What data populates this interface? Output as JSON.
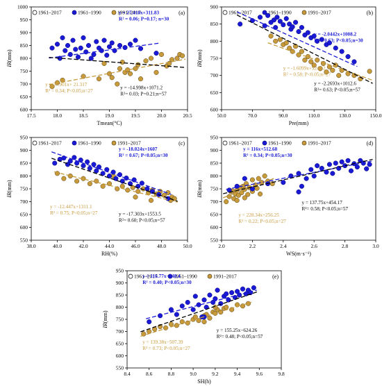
{
  "colors": {
    "all": "#000000",
    "early": "#1a1ad6",
    "late": "#c79a3c",
    "early_edge": "#0a0a7a",
    "late_edge": "#5a4418"
  },
  "legend": [
    "1961–2017",
    "1961–1990",
    "1991–2017"
  ],
  "chart_data": [
    {
      "id": "a",
      "label": "(a)",
      "type": "scatter",
      "xlabel": "Tmean(°C)",
      "ylabel": "IR(mm)",
      "xlim": [
        17.5,
        20.5
      ],
      "ylim": [
        600,
        1000
      ],
      "xticks": [
        "17.5",
        "18.0",
        "18.5",
        "19.0",
        "19.5",
        "20.0",
        "20.5"
      ],
      "yticks": [
        "600",
        "650",
        "700",
        "750",
        "800",
        "850",
        "900",
        "950",
        "1000"
      ],
      "eq_early": [
        "y = 27.418x+311.83",
        "R² = 0.06; P=0.17; n=30"
      ],
      "eq_late": [
        "y = 37.901x+ 21.317",
        "R² = 0.34; P<0.05;n=27"
      ],
      "eq_all": [
        "y = -14.998x+1071.2",
        "R²= 0.03; P=0.21;n=57"
      ],
      "lines": {
        "early": [
          27.418,
          311.83
        ],
        "late": [
          37.901,
          21.317
        ],
        "all": [
          -14.998,
          1071.2
        ]
      },
      "early": [
        [
          17.9,
          840
        ],
        [
          18.0,
          855
        ],
        [
          18.05,
          800
        ],
        [
          18.1,
          880
        ],
        [
          18.15,
          830
        ],
        [
          18.2,
          850
        ],
        [
          18.25,
          815
        ],
        [
          18.3,
          870
        ],
        [
          18.35,
          835
        ],
        [
          18.4,
          805
        ],
        [
          18.45,
          840
        ],
        [
          18.5,
          880
        ],
        [
          18.55,
          825
        ],
        [
          18.6,
          850
        ],
        [
          18.65,
          800
        ],
        [
          18.7,
          815
        ],
        [
          18.75,
          865
        ],
        [
          18.8,
          840
        ],
        [
          18.85,
          830
        ],
        [
          18.9,
          870
        ],
        [
          18.95,
          812
        ],
        [
          19.0,
          845
        ],
        [
          19.05,
          860
        ],
        [
          19.1,
          830
        ],
        [
          19.2,
          850
        ],
        [
          19.3,
          842
        ],
        [
          19.4,
          855
        ],
        [
          19.5,
          870
        ],
        [
          19.6,
          838
        ],
        [
          19.9,
          820
        ]
      ],
      "late": [
        [
          17.9,
          690
        ],
        [
          18.0,
          705
        ],
        [
          18.1,
          715
        ],
        [
          18.5,
          730
        ],
        [
          18.8,
          720
        ],
        [
          18.9,
          780
        ],
        [
          19.0,
          740
        ],
        [
          19.05,
          725
        ],
        [
          19.15,
          700
        ],
        [
          19.2,
          760
        ],
        [
          19.25,
          785
        ],
        [
          19.3,
          745
        ],
        [
          19.35,
          755
        ],
        [
          19.4,
          740
        ],
        [
          19.5,
          760
        ],
        [
          19.55,
          775
        ],
        [
          19.6,
          720
        ],
        [
          19.7,
          790
        ],
        [
          19.8,
          800
        ],
        [
          19.9,
          745
        ],
        [
          20.0,
          815
        ],
        [
          20.1,
          770
        ],
        [
          20.15,
          780
        ],
        [
          20.2,
          795
        ],
        [
          20.3,
          800
        ],
        [
          20.35,
          815
        ],
        [
          20.4,
          810
        ]
      ]
    },
    {
      "id": "b",
      "label": "(b)",
      "type": "scatter",
      "xlabel": "Pre(mm)",
      "ylabel": "IR(mm)",
      "xlim": [
        50,
        150
      ],
      "ylim": [
        600,
        900
      ],
      "xticks": [
        "50.0",
        "70.0",
        "90.0",
        "110.0",
        "130.0",
        "150.0"
      ],
      "yticks": [
        "600",
        "650",
        "700",
        "750",
        "800",
        "850",
        "900"
      ],
      "eq_early": [
        "y = -2.0442x+1008.2",
        "R² = 0.63; P<0.05;n=30"
      ],
      "eq_late": [
        "y = -1.6099x+924.12",
        "R² = 0.58; P<0.05;n=27"
      ],
      "eq_all": [
        "y = -2.2693x+1012.6",
        "R²= 0.63; P<0.05;n=57"
      ],
      "lines": {
        "early": [
          -2.0442,
          1008.2
        ],
        "late": [
          -1.6099,
          924.12
        ],
        "all": [
          -2.2693,
          1012.6
        ]
      },
      "early": [
        [
          62,
          850
        ],
        [
          70,
          860
        ],
        [
          75,
          870
        ],
        [
          78,
          845
        ],
        [
          80,
          875
        ],
        [
          82,
          855
        ],
        [
          84,
          862
        ],
        [
          85,
          840
        ],
        [
          86,
          870
        ],
        [
          88,
          858
        ],
        [
          90,
          848
        ],
        [
          92,
          866
        ],
        [
          94,
          850
        ],
        [
          95,
          835
        ],
        [
          96,
          842
        ],
        [
          98,
          855
        ],
        [
          100,
          828
        ],
        [
          102,
          840
        ],
        [
          104,
          818
        ],
        [
          106,
          825
        ],
        [
          108,
          810
        ],
        [
          110,
          815
        ],
        [
          112,
          800
        ],
        [
          115,
          805
        ],
        [
          118,
          790
        ],
        [
          120,
          795
        ],
        [
          124,
          780
        ],
        [
          128,
          770
        ],
        [
          132,
          755
        ],
        [
          136,
          740
        ]
      ],
      "late": [
        [
          82,
          815
        ],
        [
          85,
          800
        ],
        [
          88,
          805
        ],
        [
          90,
          790
        ],
        [
          92,
          795
        ],
        [
          94,
          780
        ],
        [
          96,
          770
        ],
        [
          98,
          785
        ],
        [
          100,
          760
        ],
        [
          102,
          770
        ],
        [
          104,
          745
        ],
        [
          106,
          755
        ],
        [
          108,
          740
        ],
        [
          110,
          730
        ],
        [
          112,
          745
        ],
        [
          114,
          720
        ],
        [
          116,
          735
        ],
        [
          118,
          710
        ],
        [
          120,
          725
        ],
        [
          122,
          715
        ],
        [
          124,
          730
        ],
        [
          126,
          700
        ],
        [
          128,
          715
        ],
        [
          132,
          705
        ],
        [
          136,
          700
        ],
        [
          140,
          690
        ],
        [
          146,
          712
        ]
      ]
    },
    {
      "id": "c",
      "label": "(c)",
      "type": "scatter",
      "xlabel": "RH(%)",
      "ylabel": "IR(mm)",
      "xlim": [
        38,
        50
      ],
      "ylim": [
        550,
        950
      ],
      "xticks": [
        "38.0",
        "40.0",
        "42.0",
        "44.0",
        "46.0",
        "48.0",
        "50.0"
      ],
      "yticks": [
        "550",
        "600",
        "650",
        "700",
        "750",
        "800",
        "850",
        "900",
        "950"
      ],
      "eq_early": [
        "y = -18.024x+1607",
        "R² = 0.67; P<0.05;n=30"
      ],
      "eq_late": [
        "y = -12.447x+1311.1",
        "R² = 0.75; P<0.05;n=27"
      ],
      "eq_all": [
        "y = -17.303x+1553.5",
        "R²= 0.60; P<0.05;n=57"
      ],
      "lines": {
        "early": [
          -18.024,
          1607
        ],
        "late": [
          -12.447,
          1311.1
        ],
        "all": [
          -17.303,
          1553.5
        ]
      },
      "early": [
        [
          39.8,
          850
        ],
        [
          40.2,
          865
        ],
        [
          40.5,
          870
        ],
        [
          40.8,
          845
        ],
        [
          41.0,
          858
        ],
        [
          41.3,
          872
        ],
        [
          41.5,
          850
        ],
        [
          41.8,
          862
        ],
        [
          42.0,
          840
        ],
        [
          42.3,
          855
        ],
        [
          42.5,
          830
        ],
        [
          42.8,
          845
        ],
        [
          43.0,
          820
        ],
        [
          43.2,
          835
        ],
        [
          43.5,
          810
        ],
        [
          43.8,
          825
        ],
        [
          44.0,
          800
        ],
        [
          44.3,
          815
        ],
        [
          44.5,
          790
        ],
        [
          44.8,
          805
        ],
        [
          45.0,
          780
        ],
        [
          45.3,
          792
        ],
        [
          45.6,
          770
        ],
        [
          45.9,
          785
        ],
        [
          46.2,
          760
        ],
        [
          46.5,
          772
        ],
        [
          46.9,
          750
        ],
        [
          47.3,
          740
        ],
        [
          47.8,
          728
        ],
        [
          48.5,
          712
        ]
      ],
      "late": [
        [
          40.0,
          810
        ],
        [
          40.5,
          790
        ],
        [
          41.0,
          800
        ],
        [
          41.5,
          780
        ],
        [
          42.0,
          790
        ],
        [
          42.5,
          770
        ],
        [
          43.0,
          780
        ],
        [
          43.5,
          760
        ],
        [
          44.0,
          770
        ],
        [
          44.3,
          800
        ],
        [
          44.6,
          750
        ],
        [
          45.0,
          760
        ],
        [
          45.4,
          745
        ],
        [
          45.8,
          755
        ],
        [
          46.2,
          740
        ],
        [
          46.6,
          750
        ],
        [
          47.0,
          735
        ],
        [
          47.3,
          745
        ],
        [
          47.6,
          730
        ],
        [
          47.9,
          740
        ],
        [
          48.2,
          725
        ],
        [
          48.5,
          735
        ],
        [
          48.8,
          718
        ],
        [
          49.0,
          712
        ],
        [
          47.2,
          705
        ],
        [
          46.0,
          718
        ],
        [
          48.7,
          705
        ]
      ]
    },
    {
      "id": "d",
      "label": "(d)",
      "type": "scatter",
      "xlabel": "WS(m·s⁻¹)",
      "ylabel": "IR(mm)",
      "xlim": [
        2.0,
        3.0
      ],
      "ylim": [
        550,
        950
      ],
      "xticks": [
        "2.0",
        "2.2",
        "2.4",
        "2.6",
        "2.8",
        "3.0"
      ],
      "yticks": [
        "550",
        "600",
        "650",
        "700",
        "750",
        "800",
        "850",
        "900",
        "950"
      ],
      "eq_early": [
        "y = 116x+512.68",
        "R² = 0.34; P<0.05;n=30"
      ],
      "eq_late": [
        "y = 228.34x+256.25",
        "R² = 0.22; P<0.05;n=27"
      ],
      "eq_all": [
        "y = 137.75x+454.17",
        "R²= 0.58; P<0.05;n=57"
      ],
      "lines": {
        "early": [
          116,
          512.68
        ],
        "late": [
          228.34,
          256.25
        ],
        "all": [
          137.75,
          454.17
        ]
      },
      "early": [
        [
          2.05,
          745
        ],
        [
          2.1,
          760
        ],
        [
          2.15,
          790
        ],
        [
          2.2,
          750
        ],
        [
          2.3,
          770
        ],
        [
          2.4,
          775
        ],
        [
          2.45,
          800
        ],
        [
          2.5,
          810
        ],
        [
          2.52,
          760
        ],
        [
          2.55,
          790
        ],
        [
          2.58,
          825
        ],
        [
          2.6,
          800
        ],
        [
          2.62,
          840
        ],
        [
          2.65,
          830
        ],
        [
          2.68,
          815
        ],
        [
          2.7,
          845
        ],
        [
          2.72,
          810
        ],
        [
          2.74,
          850
        ],
        [
          2.76,
          830
        ],
        [
          2.78,
          855
        ],
        [
          2.8,
          840
        ],
        [
          2.82,
          860
        ],
        [
          2.84,
          820
        ],
        [
          2.86,
          848
        ],
        [
          2.88,
          835
        ],
        [
          2.9,
          860
        ],
        [
          2.92,
          850
        ],
        [
          2.94,
          828
        ],
        [
          2.96,
          845
        ],
        [
          2.5,
          738
        ]
      ],
      "late": [
        [
          2.03,
          700
        ],
        [
          2.05,
          720
        ],
        [
          2.06,
          740
        ],
        [
          2.08,
          712
        ],
        [
          2.09,
          730
        ],
        [
          2.1,
          745
        ],
        [
          2.11,
          725
        ],
        [
          2.12,
          755
        ],
        [
          2.13,
          735
        ],
        [
          2.14,
          760
        ],
        [
          2.15,
          748
        ],
        [
          2.16,
          770
        ],
        [
          2.18,
          755
        ],
        [
          2.2,
          785
        ],
        [
          2.22,
          765
        ],
        [
          2.24,
          790
        ],
        [
          2.26,
          775
        ],
        [
          2.15,
          715
        ],
        [
          2.1,
          705
        ],
        [
          2.2,
          740
        ],
        [
          2.28,
          800
        ],
        [
          2.3,
          780
        ],
        [
          2.25,
          730
        ],
        [
          2.17,
          728
        ],
        [
          2.07,
          742
        ],
        [
          2.23,
          752
        ],
        [
          2.33,
          770
        ]
      ]
    },
    {
      "id": "e",
      "label": "(e)",
      "type": "scatter",
      "xlabel": "SH(h)",
      "ylabel": "IR(mm)",
      "xlim": [
        8.4,
        9.8
      ],
      "ylim": [
        550,
        950
      ],
      "xticks": [
        "8.4",
        "8.6",
        "8.8",
        "9.0",
        "9.2",
        "9.4",
        "9.6",
        "9.8"
      ],
      "yticks": [
        "550",
        "600",
        "650",
        "700",
        "750",
        "800",
        "850",
        "900",
        "950"
      ],
      "eq_early": [
        "y = 116.77x−248.4",
        "R² = 0.40; P<0.05;n=30"
      ],
      "eq_late": [
        "y = 139.38x−507.39",
        "R² = 0.73; P<0.05;n=27"
      ],
      "eq_all": [
        "y = 155.25x−624.26",
        "R²= 0.48; P<0.05;n=57"
      ],
      "lines": {
        "early": [
          116.77,
          -248.4
        ],
        "late": [
          139.38,
          -507.39
        ],
        "all": [
          155.25,
          -624.26
        ]
      },
      "early": [
        [
          8.6,
          740
        ],
        [
          8.7,
          765
        ],
        [
          8.8,
          790
        ],
        [
          8.85,
          770
        ],
        [
          8.9,
          805
        ],
        [
          8.95,
          820
        ],
        [
          9.0,
          790
        ],
        [
          9.02,
          845
        ],
        [
          9.05,
          810
        ],
        [
          9.08,
          760
        ],
        [
          9.1,
          830
        ],
        [
          9.12,
          800
        ],
        [
          9.15,
          850
        ],
        [
          9.18,
          820
        ],
        [
          9.2,
          835
        ],
        [
          9.22,
          870
        ],
        [
          9.25,
          815
        ],
        [
          9.28,
          845
        ],
        [
          9.3,
          855
        ],
        [
          9.32,
          830
        ],
        [
          9.35,
          860
        ],
        [
          9.38,
          840
        ],
        [
          9.4,
          865
        ],
        [
          9.42,
          850
        ],
        [
          9.45,
          875
        ],
        [
          9.48,
          855
        ],
        [
          9.5,
          870
        ],
        [
          9.52,
          860
        ],
        [
          9.55,
          880
        ],
        [
          9.1,
          760
        ]
      ],
      "late": [
        [
          8.55,
          690
        ],
        [
          8.6,
          700
        ],
        [
          8.65,
          710
        ],
        [
          8.7,
          720
        ],
        [
          8.75,
          715
        ],
        [
          8.8,
          730
        ],
        [
          8.85,
          725
        ],
        [
          8.9,
          740
        ],
        [
          8.95,
          735
        ],
        [
          9.0,
          750
        ],
        [
          9.02,
          760
        ],
        [
          9.05,
          745
        ],
        [
          9.1,
          765
        ],
        [
          9.12,
          770
        ],
        [
          9.15,
          755
        ],
        [
          9.18,
          780
        ],
        [
          9.2,
          775
        ],
        [
          9.22,
          790
        ],
        [
          9.25,
          780
        ],
        [
          9.28,
          795
        ],
        [
          9.3,
          800
        ],
        [
          9.35,
          790
        ],
        [
          9.4,
          810
        ],
        [
          9.45,
          805
        ],
        [
          9.5,
          815
        ],
        [
          9.1,
          740
        ],
        [
          9.2,
          800
        ]
      ]
    }
  ]
}
